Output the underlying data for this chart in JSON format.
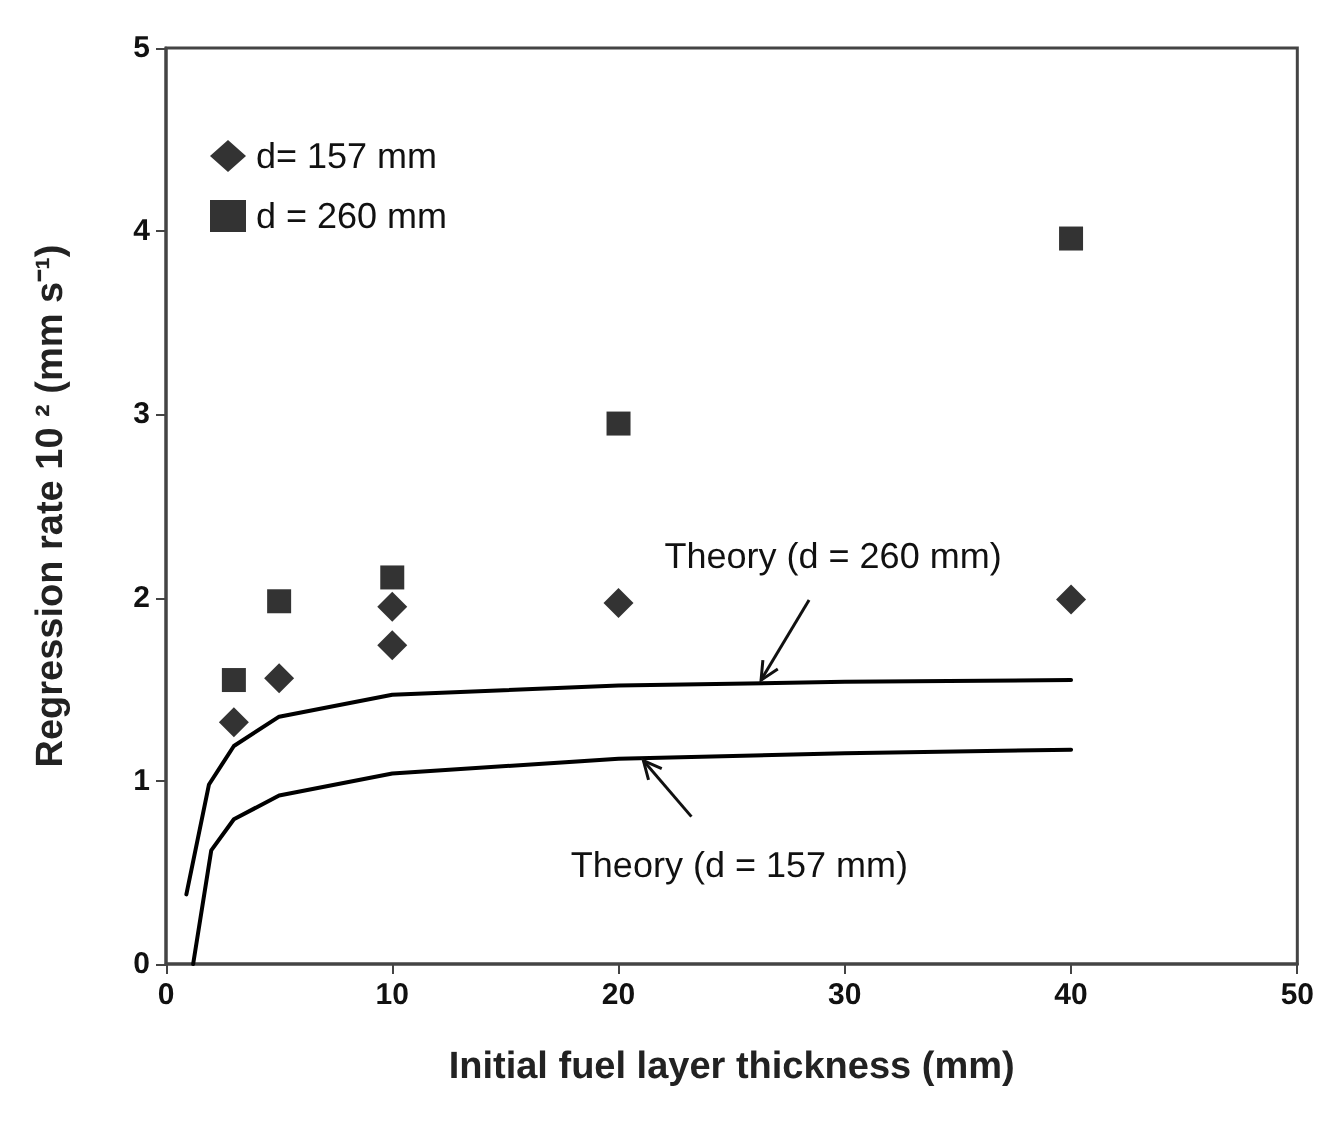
{
  "chart_data": {
    "type": "scatter",
    "xlabel": "Initial fuel layer thickness (mm)",
    "ylabel": "Regression rate 10 ² (mm s⁻¹)",
    "xlim": [
      0,
      50
    ],
    "xticks": [
      0,
      10,
      20,
      30,
      40,
      50
    ],
    "ylim": [
      0,
      5
    ],
    "yticks": [
      0,
      1,
      2,
      3,
      4,
      5
    ],
    "grid": false,
    "legend": "top left",
    "series": [
      {
        "name": "d= 157 mm",
        "marker": "diamond",
        "color": "#000000",
        "x": [
          3,
          5,
          10,
          10,
          20,
          40
        ],
        "values": [
          1.32,
          1.56,
          1.95,
          1.74,
          1.97,
          1.99
        ]
      },
      {
        "name": "d = 260 mm",
        "marker": "square",
        "color": "#000000",
        "x": [
          3,
          5,
          10,
          20,
          40
        ],
        "values": [
          1.55,
          1.98,
          2.11,
          2.95,
          3.96
        ]
      },
      {
        "type": "line",
        "marker": "none",
        "line_style": "solid",
        "color": "#000000",
        "x": [
          0.9,
          1.9,
          3,
          5,
          10,
          20,
          30,
          40
        ],
        "values": [
          0.38,
          0.98,
          1.19,
          1.35,
          1.47,
          1.52,
          1.54,
          1.55
        ]
      },
      {
        "type": "line",
        "marker": "none",
        "line_style": "solid",
        "color": "#000000",
        "x": [
          1.2,
          2,
          3,
          5,
          10,
          20,
          30,
          40
        ],
        "values": [
          0,
          0.62,
          0.79,
          0.92,
          1.04,
          1.12,
          1.15,
          1.17
        ]
      }
    ],
    "annotations": [
      {
        "text": "Theory (d = 260 mm)",
        "x": 26.3,
        "y": 1.55
      },
      {
        "text": "Theory (d = 157 mm)",
        "x": 21.1,
        "y": 1.11
      }
    ]
  }
}
